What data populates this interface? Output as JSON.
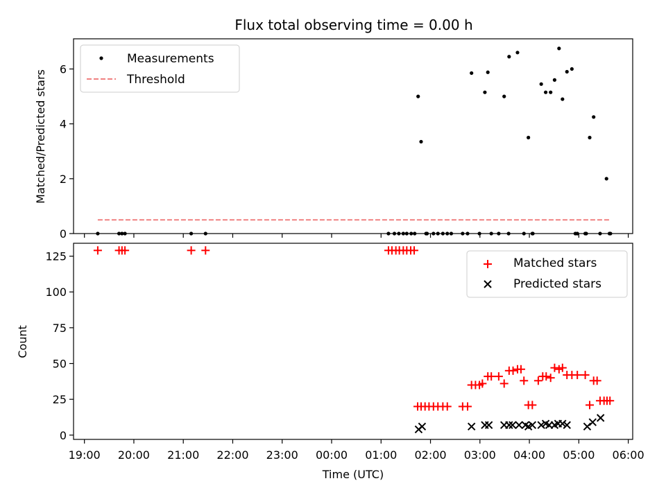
{
  "chart_data": [
    {
      "type": "scatter",
      "title": "Flux total observing time = 0.00 h",
      "xlabel": "",
      "ylabel": "Matched/Predicted stars",
      "x_range_hours": [
        18.78,
        30.09
      ],
      "ylim": [
        0,
        7.1
      ],
      "yticks": [
        0,
        2,
        4,
        6
      ],
      "legend_position": "top-left",
      "series": [
        {
          "name": "Measurements",
          "marker": "dot",
          "color": "#000000",
          "x_hours": [
            19.27,
            19.7,
            19.76,
            19.82,
            21.16,
            21.45,
            25.15,
            25.27,
            25.36,
            25.45,
            25.52,
            25.61,
            25.68,
            25.75,
            25.81,
            25.91,
            26.06,
            26.15,
            26.25,
            26.34,
            26.65,
            26.75,
            26.83,
            26.99,
            27.1,
            27.16,
            27.23,
            27.38,
            27.49,
            27.59,
            27.76,
            27.89,
            27.98,
            28.07,
            28.24,
            28.33,
            28.43,
            28.51,
            28.6,
            28.67,
            28.76,
            28.86,
            28.97,
            29.13,
            29.22,
            29.3,
            29.43,
            29.56,
            29.62
          ],
          "y": [
            0,
            0,
            0,
            0,
            0,
            0,
            0,
            0,
            0,
            0,
            0,
            0,
            0,
            5.0,
            3.35,
            0,
            0,
            0,
            0,
            0,
            0,
            0,
            5.85,
            0,
            5.15,
            5.88,
            0,
            0,
            5.0,
            6.45,
            6.6,
            0,
            3.5,
            0,
            5.45,
            5.15,
            5.15,
            5.6,
            6.75,
            4.9,
            5.9,
            6.0,
            0,
            0,
            3.5,
            4.25,
            0,
            2.0,
            0
          ],
          "extra_points": [
            [
              25.93,
              0
            ],
            [
              26.42,
              0
            ],
            [
              27.58,
              0
            ],
            [
              28.06,
              0
            ],
            [
              28.93,
              0
            ],
            [
              29.15,
              0
            ],
            [
              29.64,
              0
            ]
          ]
        },
        {
          "name": "Threshold",
          "marker": "dashed-line",
          "color": "#f08080",
          "x_hours": [
            19.27,
            29.62
          ],
          "y": [
            0.5,
            0.5
          ]
        }
      ]
    },
    {
      "type": "scatter",
      "title": "",
      "xlabel": "Time (UTC)",
      "ylabel": "Count",
      "x_range_hours": [
        18.78,
        30.09
      ],
      "ylim": [
        -3,
        134
      ],
      "yticks": [
        0,
        25,
        50,
        75,
        100,
        125
      ],
      "xtick_hours": [
        19,
        20,
        21,
        22,
        23,
        24,
        25,
        26,
        27,
        28,
        29,
        30
      ],
      "xtick_labels": [
        "19:00",
        "20:00",
        "21:00",
        "22:00",
        "23:00",
        "00:00",
        "01:00",
        "02:00",
        "03:00",
        "04:00",
        "05:00",
        "06:00"
      ],
      "legend_position": "top-right",
      "series": [
        {
          "name": "Matched stars",
          "marker": "plus",
          "color": "#ff0000",
          "x_hours": [
            19.27,
            19.7,
            19.76,
            19.82,
            21.16,
            21.45,
            25.15,
            25.22,
            25.3,
            25.37,
            25.45,
            25.52,
            25.6,
            25.67,
            25.74,
            25.81,
            25.89,
            25.97,
            26.06,
            26.15,
            26.25,
            26.34,
            26.65,
            26.75,
            26.83,
            26.91,
            26.99,
            27.05,
            27.16,
            27.23,
            27.38,
            27.49,
            27.59,
            27.67,
            27.76,
            27.83,
            27.89,
            27.98,
            28.06,
            28.18,
            28.27,
            28.34,
            28.43,
            28.51,
            28.6,
            28.67,
            28.76,
            28.86,
            28.97,
            29.13,
            29.22,
            29.3,
            29.37,
            29.43,
            29.51,
            29.57,
            29.63
          ],
          "y": [
            129,
            129,
            129,
            129,
            129,
            129,
            129,
            129,
            129,
            129,
            129,
            129,
            129,
            129,
            20,
            20,
            20,
            20,
            20,
            20,
            20,
            20,
            20,
            20,
            35,
            35,
            35,
            36,
            41,
            41,
            41,
            36,
            45,
            45,
            46,
            46,
            38,
            21,
            21,
            38,
            41,
            41,
            40,
            47,
            46,
            47,
            42,
            42,
            42,
            42,
            21,
            38,
            38,
            24,
            24,
            24,
            24
          ]
        },
        {
          "name": "Predicted stars",
          "marker": "x",
          "color": "#000000",
          "x_hours": [
            25.76,
            25.83,
            26.83,
            27.1,
            27.18,
            27.49,
            27.59,
            27.66,
            27.79,
            27.92,
            27.98,
            28.06,
            28.24,
            28.33,
            28.4,
            28.51,
            28.58,
            28.67,
            28.76,
            29.17,
            29.28,
            29.44
          ],
          "y": [
            4,
            6,
            6,
            7,
            7,
            7,
            7,
            7,
            7,
            7,
            6,
            7,
            7,
            8,
            7,
            7,
            8,
            8,
            7,
            6,
            9,
            12
          ]
        }
      ]
    }
  ]
}
